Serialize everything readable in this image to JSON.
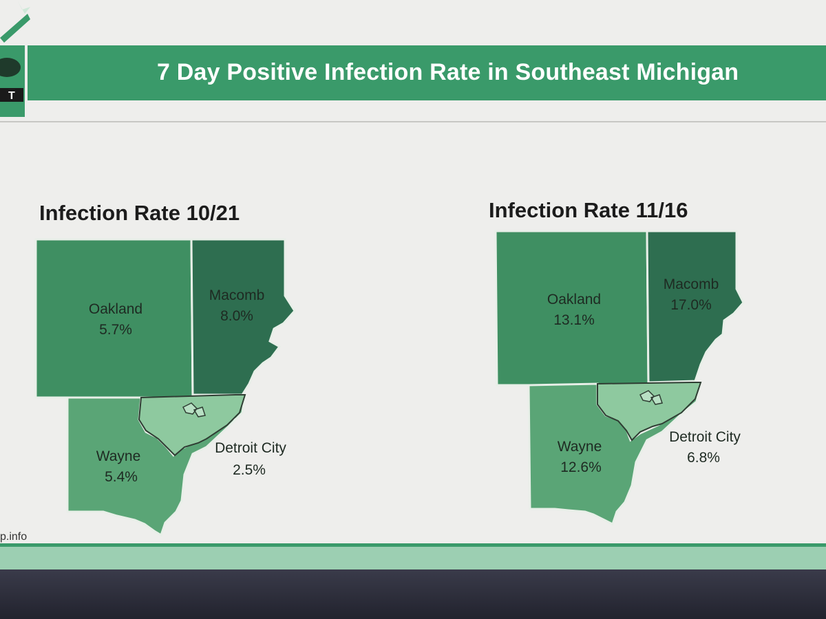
{
  "slide": {
    "title": "7 Day Positive Infection Rate in Southeast Michigan",
    "footer_url": "p.info",
    "logo_text": "T"
  },
  "colors": {
    "header_green": "#3a9a6a",
    "oakland": "#3f8f62",
    "macomb": "#2e6e50",
    "wayne": "#5aa576",
    "detroit": "#8ec99f",
    "border": "#e8efe8"
  },
  "maps": [
    {
      "title": "Infection Rate 10/21",
      "counties": [
        {
          "name": "Oakland",
          "rate": "5.7%"
        },
        {
          "name": "Macomb",
          "rate": "8.0%"
        },
        {
          "name": "Wayne",
          "rate": "5.4%"
        },
        {
          "name": "Detroit City",
          "rate": "2.5%"
        }
      ]
    },
    {
      "title": "Infection Rate 11/16",
      "counties": [
        {
          "name": "Oakland",
          "rate": "13.1%"
        },
        {
          "name": "Macomb",
          "rate": "17.0%"
        },
        {
          "name": "Wayne",
          "rate": "12.6%"
        },
        {
          "name": "Detroit City",
          "rate": "6.8%"
        }
      ]
    }
  ]
}
